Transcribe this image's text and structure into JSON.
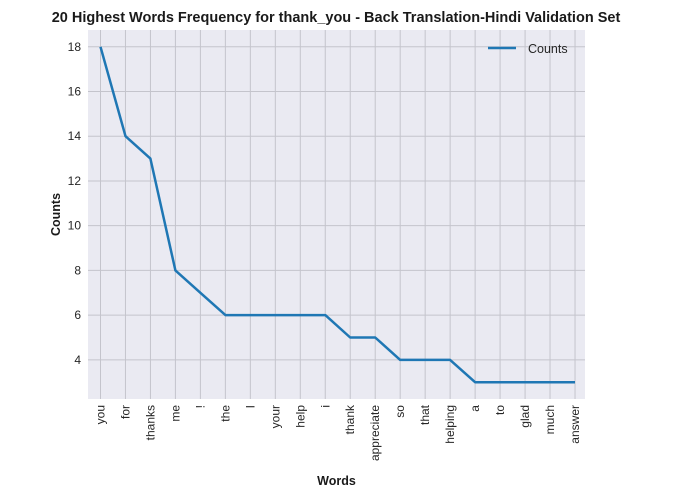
{
  "chart_data": {
    "type": "line",
    "title": "20 Highest Words Frequency for thank_you - Back Translation-Hindi Validation Set",
    "xlabel": "Words",
    "ylabel": "Counts",
    "categories": [
      "you",
      "for",
      "thanks",
      "me",
      "!",
      "the",
      "I",
      "your",
      "help",
      "i",
      "thank",
      "appreciate",
      "so",
      "that",
      "helping",
      "a",
      "to",
      "glad",
      "much",
      "answer"
    ],
    "series": [
      {
        "name": "Counts",
        "color": "#1f77b4",
        "values": [
          18,
          14,
          13,
          8,
          7,
          6,
          6,
          6,
          6,
          6,
          5,
          5,
          4,
          4,
          4,
          3,
          3,
          3,
          3,
          3
        ]
      }
    ],
    "ylim": [
      2.25,
      18.75
    ],
    "yticks": [
      4,
      6,
      8,
      10,
      12,
      14,
      16,
      18
    ],
    "grid": true,
    "legend": "top-right"
  }
}
